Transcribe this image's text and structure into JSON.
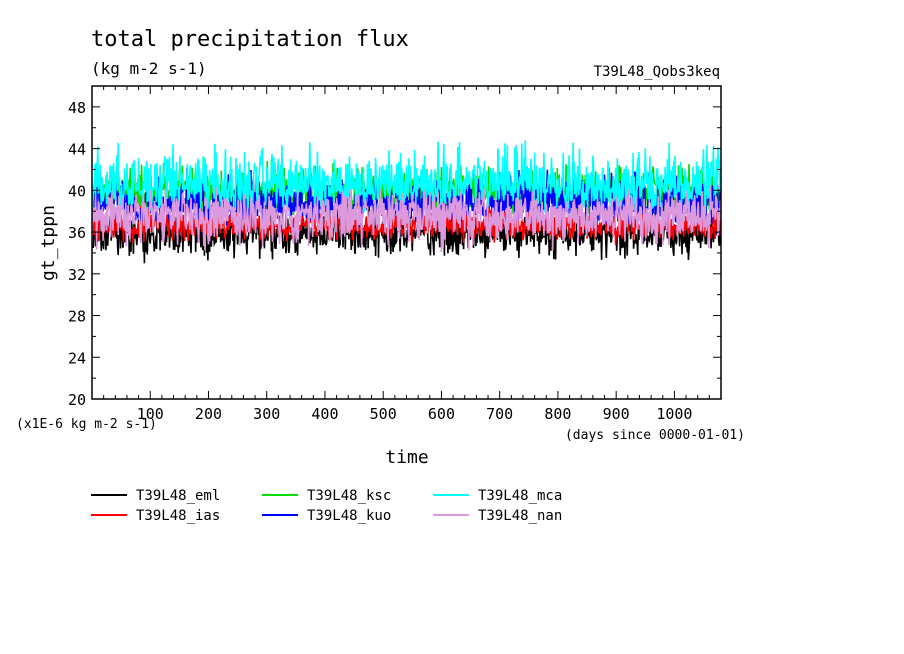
{
  "chart_data": {
    "type": "line",
    "title": "total precipitation flux",
    "subtitle": "(kg m-2 s-1)",
    "run_label": "T39L48_Qobs3keq",
    "xlabel": "time",
    "xunits": "(days since 0000-01-01)",
    "ylabel": "gt_tppn",
    "yunits": "(x1E-6 kg m-2 s-1)",
    "xlim": [
      0,
      1080
    ],
    "ylim": [
      20,
      50
    ],
    "xticks": [
      100,
      200,
      300,
      400,
      500,
      600,
      700,
      800,
      900,
      1000
    ],
    "yticks": [
      20,
      24,
      28,
      32,
      36,
      40,
      44,
      48
    ],
    "legend_position": "bottom",
    "series": [
      {
        "name": "T39L48_eml",
        "color": "#000000",
        "x": [
          0,
          60,
          120,
          180,
          240,
          300,
          360,
          420,
          480,
          540,
          600,
          660,
          720,
          780,
          840,
          900,
          960,
          1020,
          1080
        ],
        "y": [
          36.0,
          35.9,
          35.8,
          36.1,
          35.9,
          36.0,
          35.8,
          36.0,
          36.1,
          36.0,
          35.9,
          36.1,
          36.0,
          35.9,
          36.0,
          36.1,
          36.0,
          35.9,
          36.0
        ],
        "min": 31.8,
        "max": 39.2
      },
      {
        "name": "T39L48_ias",
        "color": "#ff0000",
        "x": [
          0,
          60,
          120,
          180,
          240,
          300,
          360,
          420,
          480,
          540,
          600,
          660,
          720,
          780,
          840,
          900,
          960,
          1020,
          1080
        ],
        "y": [
          36.6,
          36.5,
          36.7,
          36.6,
          36.5,
          36.6,
          36.7,
          36.6,
          36.5,
          36.7,
          36.6,
          36.6,
          36.5,
          36.7,
          36.6,
          36.5,
          36.6,
          36.7,
          36.6
        ],
        "min": 34.2,
        "max": 39.5
      },
      {
        "name": "T39L48_ksc",
        "color": "#00dd00",
        "x": [
          0,
          60,
          120,
          180,
          240,
          300,
          360,
          420,
          480,
          540,
          600,
          660,
          720,
          780,
          840,
          900,
          960,
          1020,
          1080
        ],
        "y": [
          39.6,
          39.5,
          39.7,
          39.6,
          39.5,
          39.6,
          39.7,
          39.6,
          39.5,
          39.7,
          39.6,
          39.6,
          39.5,
          39.7,
          39.6,
          39.5,
          39.6,
          39.7,
          39.6
        ],
        "min": 36.0,
        "max": 44.2
      },
      {
        "name": "T39L48_kuo",
        "color": "#0000ff",
        "x": [
          0,
          60,
          120,
          180,
          240,
          300,
          360,
          420,
          480,
          540,
          600,
          660,
          720,
          780,
          840,
          900,
          960,
          1020,
          1080
        ],
        "y": [
          38.6,
          38.5,
          38.7,
          38.6,
          38.5,
          38.6,
          38.7,
          38.6,
          38.5,
          38.7,
          38.6,
          38.6,
          38.5,
          38.7,
          38.6,
          38.5,
          38.6,
          38.7,
          38.6
        ],
        "min": 35.5,
        "max": 44.0
      },
      {
        "name": "T39L48_mca",
        "color": "#00ffff",
        "x": [
          0,
          60,
          120,
          180,
          240,
          300,
          360,
          420,
          480,
          540,
          600,
          660,
          720,
          780,
          840,
          900,
          960,
          1020,
          1080
        ],
        "y": [
          40.3,
          40.2,
          40.4,
          40.3,
          40.2,
          40.3,
          40.4,
          40.3,
          40.2,
          40.4,
          40.3,
          40.3,
          40.2,
          40.4,
          40.3,
          40.2,
          40.3,
          40.4,
          40.3
        ],
        "min": 36.5,
        "max": 46.8
      },
      {
        "name": "T39L48_nan",
        "color": "#dd99dd",
        "x": [
          0,
          60,
          120,
          180,
          240,
          300,
          360,
          420,
          480,
          540,
          600,
          660,
          720,
          780,
          840,
          900,
          960,
          1020,
          1080
        ],
        "y": [
          37.7,
          37.6,
          37.8,
          37.7,
          37.6,
          37.7,
          37.8,
          37.7,
          37.6,
          37.8,
          37.7,
          37.7,
          37.6,
          37.8,
          37.7,
          37.6,
          37.7,
          37.8,
          37.7
        ],
        "min": 32.6,
        "max": 41.5
      }
    ]
  }
}
